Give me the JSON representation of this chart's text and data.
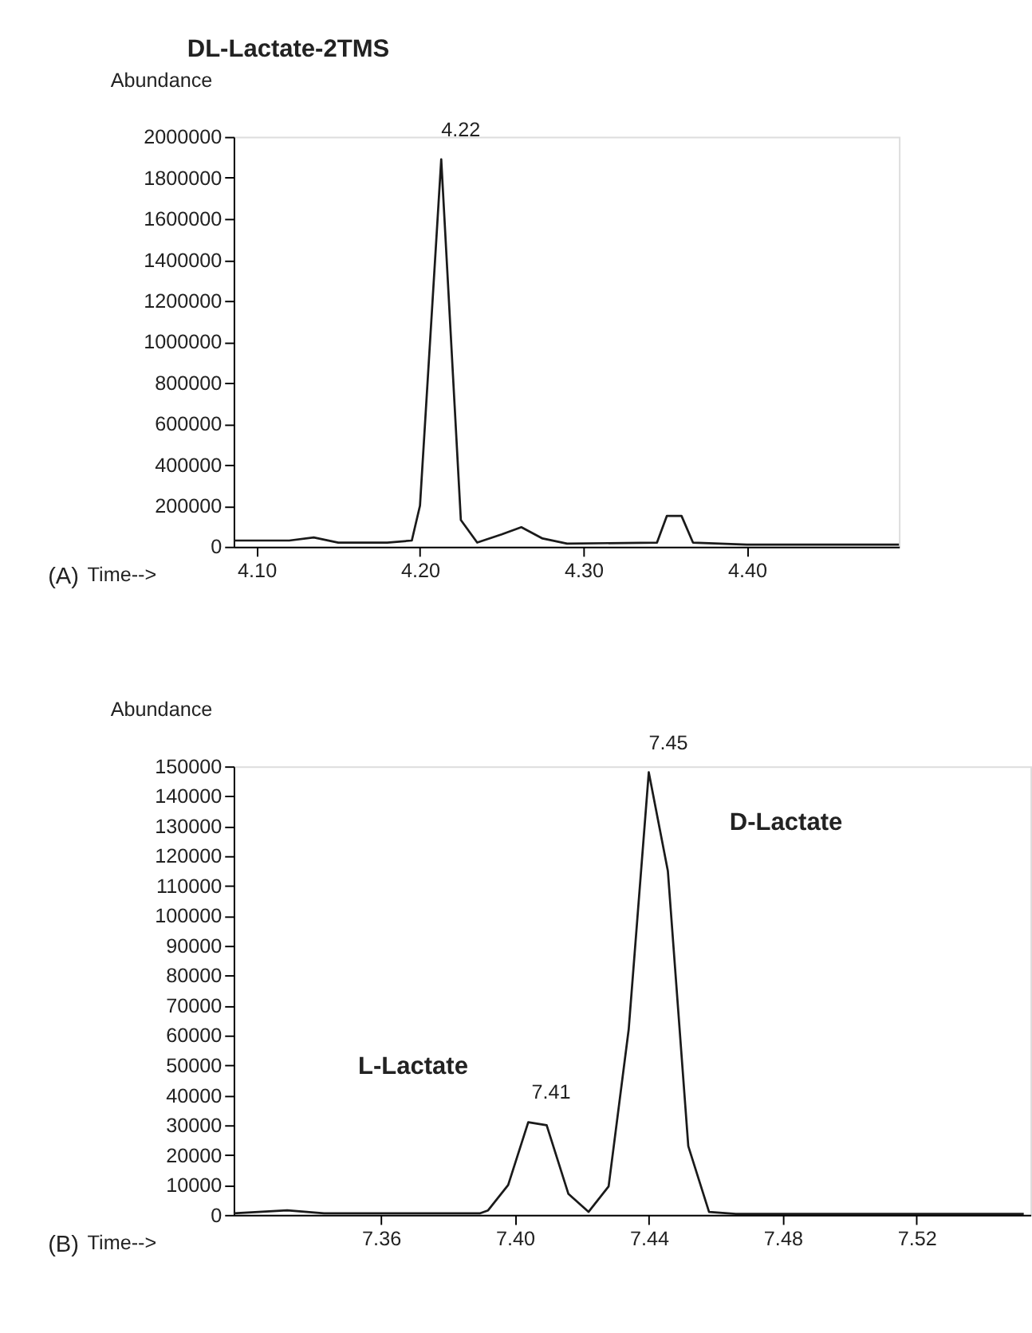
{
  "chart_data": [
    {
      "type": "line",
      "title": "DL-Lactate-2TMS",
      "xlabel": "Time-->",
      "ylabel": "Abundance",
      "x": [
        4.086,
        4.12,
        4.135,
        4.15,
        4.18,
        4.195,
        4.2,
        4.213,
        4.225,
        4.235,
        4.25,
        4.262,
        4.275,
        4.29,
        4.345,
        4.351,
        4.36,
        4.367,
        4.4,
        4.493
      ],
      "series": [
        {
          "color": "#1a1a1a",
          "values": [
            30000,
            30000,
            45000,
            20000,
            20000,
            30000,
            200000,
            1890000,
            130000,
            20000,
            60000,
            95000,
            40000,
            15000,
            20000,
            150000,
            150000,
            20000,
            10000,
            10000
          ]
        }
      ],
      "xlim": [
        4.086,
        4.493
      ],
      "xticks": [
        {
          "value": 4.1,
          "label": "4.10"
        },
        {
          "value": 4.2,
          "label": "4.20"
        },
        {
          "value": 4.3,
          "label": "4.30"
        },
        {
          "value": 4.4,
          "label": "4.40"
        }
      ],
      "ylim": [
        0,
        2000000
      ],
      "yticks": [
        0,
        200000,
        400000,
        600000,
        800000,
        1000000,
        1200000,
        1400000,
        1600000,
        1800000,
        2000000
      ],
      "annotations": [
        {
          "text": "4.22",
          "x": 4.213,
          "y": 1890000
        },
        "(A)"
      ],
      "grid": false,
      "marker": "none",
      "line_style": "solid"
    },
    {
      "type": "line",
      "xlabel": "Time-->",
      "ylabel": "Abundance",
      "x": [
        7.316,
        7.332,
        7.343,
        7.3895,
        7.392,
        7.398,
        7.404,
        7.4095,
        7.416,
        7.422,
        7.428,
        7.434,
        7.44,
        7.4457,
        7.4518,
        7.458,
        7.466,
        7.552
      ],
      "series": [
        {
          "color": "#1a1a1a",
          "values": [
            500,
            1500,
            500,
            500,
            1500,
            10000,
            31000,
            30000,
            7000,
            1000,
            9500,
            62000,
            148000,
            115000,
            23000,
            1000,
            300,
            300
          ]
        }
      ],
      "xlim": [
        7.316,
        7.554
      ],
      "xticks": [
        7.36,
        {
          "value": 7.4,
          "label": "7.40"
        },
        7.44,
        7.48,
        7.52
      ],
      "ylim": [
        0,
        150000
      ],
      "yticks": [
        0,
        10000,
        20000,
        30000,
        40000,
        50000,
        60000,
        70000,
        80000,
        90000,
        100000,
        110000,
        120000,
        130000,
        140000,
        150000
      ],
      "annotations": [
        {
          "text": "7.41",
          "x": 7.405,
          "y": 31000
        },
        {
          "text": "7.45",
          "x": 7.44,
          "y": 148000
        },
        "(B)",
        "L-Lactate",
        "D-Lactate"
      ],
      "grid": false,
      "marker": "none",
      "line_style": "solid"
    }
  ]
}
